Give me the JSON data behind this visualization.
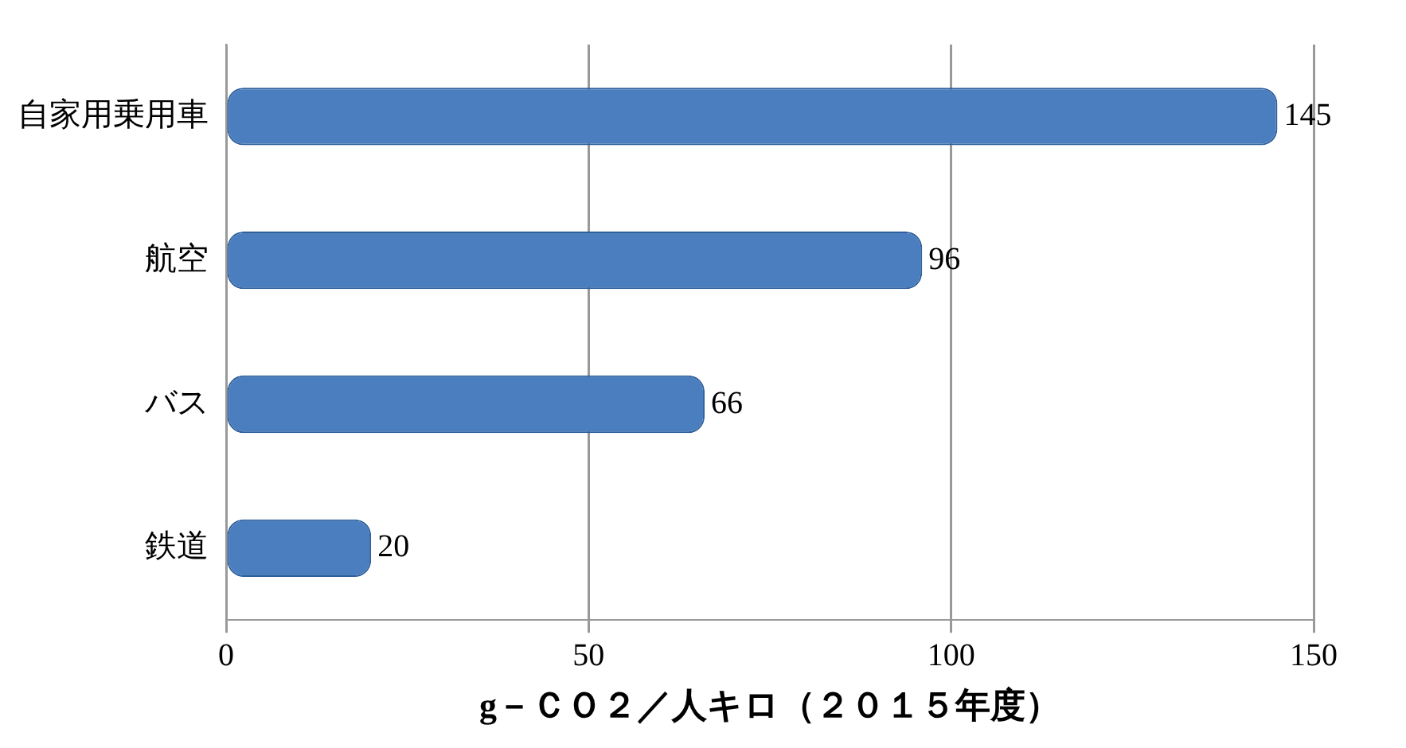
{
  "chart_data": {
    "type": "bar",
    "orientation": "horizontal",
    "categories": [
      "自家用乗用車",
      "航空",
      "バス",
      "鉄道"
    ],
    "values": [
      145,
      96,
      66,
      20
    ],
    "color": "#4a7ebf",
    "xlim": [
      0,
      150
    ],
    "xticks": [
      0,
      50,
      100,
      150
    ],
    "grid": "x",
    "data_labels": true,
    "legend": false,
    "xlabel": "g－ＣＯ２／人キロ（２０１５年度）"
  }
}
